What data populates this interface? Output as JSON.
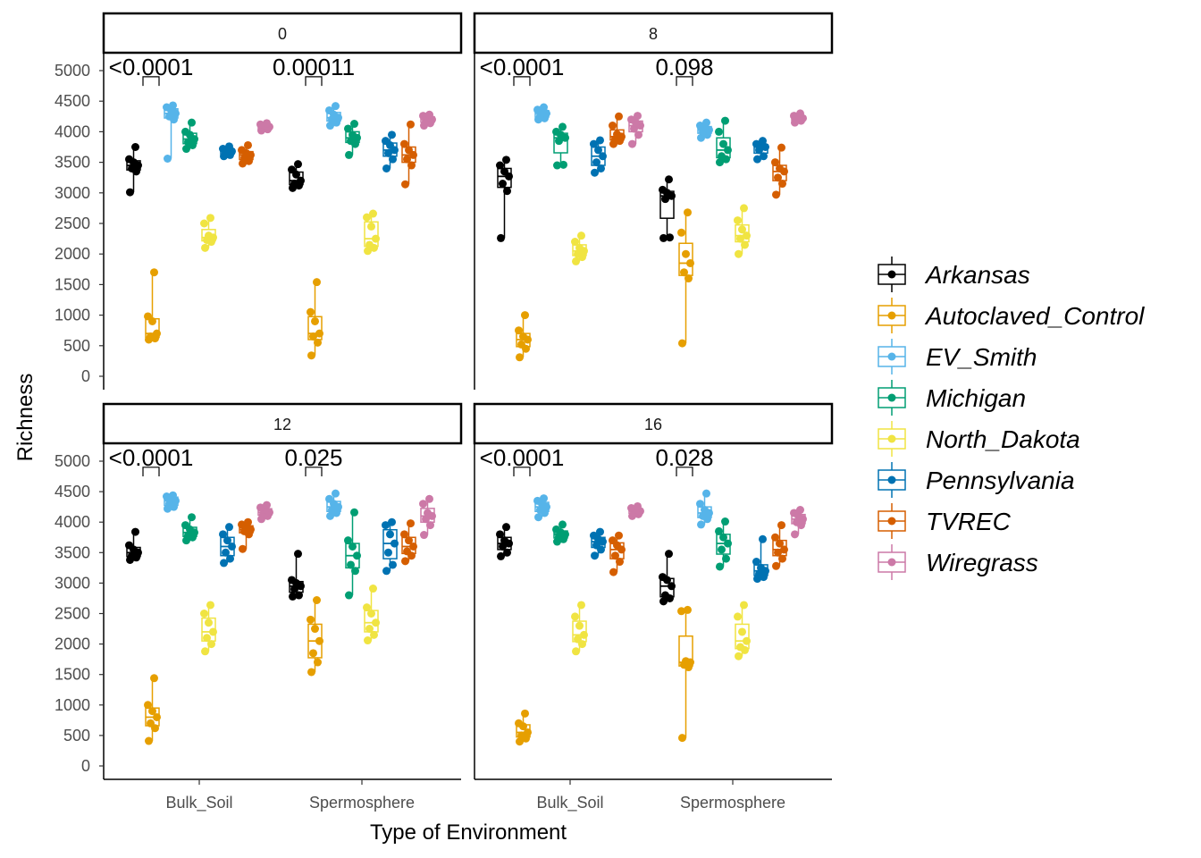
{
  "chart_data": {
    "type": "boxplot",
    "xlabel": "Type of Environment",
    "ylabel": "Richness",
    "ylim": [
      0,
      5000
    ],
    "yticks": [
      "0",
      "500",
      "1000",
      "1500",
      "2000",
      "2500",
      "3000",
      "3500",
      "4000",
      "4500",
      "5000"
    ],
    "categories": [
      "Bulk_Soil",
      "Spermosphere"
    ],
    "groups": [
      "Arkansas",
      "Autoclaved_Control",
      "EV_Smith",
      "Michigan",
      "North_Dakota",
      "Pennsylvania",
      "TVREC",
      "Wiregrass"
    ],
    "colors": {
      "Arkansas": "#000000",
      "Autoclaved_Control": "#E69F00",
      "EV_Smith": "#56B4E9",
      "Michigan": "#009E73",
      "North_Dakota": "#F0E442",
      "Pennsylvania": "#0072B2",
      "TVREC": "#D55E00",
      "Wiregrass": "#CC79A7"
    },
    "panels": [
      {
        "label": "0",
        "pvalues": [
          "<0.0001",
          "0.00011"
        ],
        "data": {
          "Bulk_Soil": {
            "Arkansas": [
              3010,
              3350,
              3400,
              3450,
              3500,
              3550,
              3750
            ],
            "Autoclaved_Control": [
              600,
              620,
              650,
              700,
              900,
              980,
              1700
            ],
            "EV_Smith": [
              3560,
              4200,
              4250,
              4300,
              4350,
              4400,
              4430
            ],
            "Michigan": [
              3720,
              3780,
              3830,
              3880,
              3950,
              4000,
              4150
            ],
            "North_Dakota": [
              2100,
              2200,
              2230,
              2270,
              2300,
              2500,
              2590
            ],
            "Pennsylvania": [
              3600,
              3620,
              3650,
              3680,
              3700,
              3720,
              3760
            ],
            "TVREC": [
              3480,
              3520,
              3570,
              3620,
              3650,
              3700,
              3780
            ],
            "Wiregrass": [
              4020,
              4040,
              4060,
              4080,
              4100,
              4120,
              4140
            ]
          },
          "Spermosphere": {
            "Arkansas": [
              3080,
              3120,
              3150,
              3200,
              3300,
              3380,
              3470
            ],
            "Autoclaved_Control": [
              340,
              550,
              650,
              700,
              900,
              1050,
              1540
            ],
            "EV_Smith": [
              4100,
              4150,
              4200,
              4230,
              4280,
              4350,
              4420
            ],
            "Michigan": [
              3620,
              3800,
              3850,
              3900,
              3950,
              4050,
              4130
            ],
            "North_Dakota": [
              2050,
              2100,
              2150,
              2250,
              2450,
              2600,
              2660
            ],
            "Pennsylvania": [
              3400,
              3550,
              3650,
              3700,
              3780,
              3850,
              3950
            ],
            "TVREC": [
              3140,
              3450,
              3550,
              3620,
              3700,
              3800,
              4120
            ],
            "Wiregrass": [
              4100,
              4140,
              4170,
              4200,
              4230,
              4260,
              4280
            ]
          }
        }
      },
      {
        "label": "8",
        "pvalues": [
          "<0.0001",
          "0.098"
        ],
        "data": {
          "Bulk_Soil": {
            "Arkansas": [
              2260,
              3030,
              3150,
              3270,
              3350,
              3450,
              3540
            ],
            "Autoclaved_Control": [
              310,
              450,
              520,
              600,
              650,
              750,
              1000
            ],
            "EV_Smith": [
              4200,
              4220,
              4260,
              4300,
              4330,
              4360,
              4400
            ],
            "Michigan": [
              3450,
              3460,
              3850,
              3900,
              3950,
              4000,
              4080
            ],
            "North_Dakota": [
              1880,
              1950,
              2000,
              2050,
              2100,
              2200,
              2300
            ],
            "Pennsylvania": [
              3330,
              3400,
              3500,
              3600,
              3700,
              3800,
              3860
            ],
            "TVREC": [
              3800,
              3850,
              3880,
              3920,
              3960,
              4100,
              4250
            ],
            "Wiregrass": [
              3800,
              3950,
              4050,
              4100,
              4150,
              4200,
              4260
            ]
          },
          "Spermosphere": {
            "Arkansas": [
              2260,
              2270,
              2900,
              2950,
              3000,
              3050,
              3220
            ],
            "Autoclaved_Control": [
              540,
              1600,
              1700,
              1850,
              2000,
              2350,
              2680
            ],
            "EV_Smith": [
              3900,
              3950,
              4000,
              4030,
              4070,
              4100,
              4150
            ],
            "Michigan": [
              3500,
              3550,
              3600,
              3700,
              3800,
              4000,
              4180
            ],
            "North_Dakota": [
              2000,
              2150,
              2250,
              2300,
              2400,
              2550,
              2750
            ],
            "Pennsylvania": [
              3550,
              3600,
              3700,
              3750,
              3780,
              3800,
              3850
            ],
            "TVREC": [
              2970,
              3150,
              3250,
              3350,
              3400,
              3500,
              3740
            ],
            "Wiregrass": [
              4150,
              4180,
              4200,
              4220,
              4240,
              4260,
              4300
            ]
          }
        }
      },
      {
        "label": "12",
        "pvalues": [
          "<0.0001",
          "0.025"
        ],
        "data": {
          "Bulk_Soil": {
            "Arkansas": [
              3380,
              3420,
              3450,
              3500,
              3550,
              3620,
              3840
            ],
            "Autoclaved_Control": [
              410,
              620,
              700,
              800,
              900,
              1000,
              1440
            ],
            "EV_Smith": [
              4220,
              4250,
              4300,
              4350,
              4400,
              4420,
              4440
            ],
            "Michigan": [
              3700,
              3750,
              3780,
              3830,
              3880,
              3950,
              4080
            ],
            "North_Dakota": [
              1880,
              2000,
              2100,
              2200,
              2350,
              2500,
              2640
            ],
            "Pennsylvania": [
              3330,
              3400,
              3500,
              3600,
              3700,
              3800,
              3920
            ],
            "TVREC": [
              3560,
              3800,
              3850,
              3880,
              3920,
              3960,
              4000
            ],
            "Wiregrass": [
              4050,
              4100,
              4130,
              4160,
              4200,
              4240,
              4280
            ]
          },
          "Spermosphere": {
            "Arkansas": [
              2780,
              2800,
              2900,
              2950,
              3000,
              3050,
              3480
            ],
            "Autoclaved_Control": [
              1540,
              1700,
              1850,
              2050,
              2250,
              2400,
              2720
            ],
            "EV_Smith": [
              4100,
              4150,
              4200,
              4250,
              4300,
              4380,
              4470
            ],
            "Michigan": [
              2800,
              3200,
              3300,
              3450,
              3600,
              3700,
              4160
            ],
            "North_Dakota": [
              2060,
              2150,
              2250,
              2350,
              2500,
              2600,
              2910
            ],
            "Pennsylvania": [
              3200,
              3300,
              3500,
              3650,
              3800,
              3950,
              4000
            ],
            "TVREC": [
              3360,
              3450,
              3520,
              3600,
              3700,
              3800,
              3980
            ],
            "Wiregrass": [
              3790,
              3950,
              4050,
              4100,
              4150,
              4300,
              4380
            ]
          }
        }
      },
      {
        "label": "16",
        "pvalues": [
          "<0.0001",
          "0.028"
        ],
        "data": {
          "Bulk_Soil": {
            "Arkansas": [
              3440,
              3500,
              3600,
              3650,
              3700,
              3800,
              3920
            ],
            "Autoclaved_Control": [
              400,
              450,
              500,
              550,
              650,
              700,
              860
            ],
            "EV_Smith": [
              4080,
              4150,
              4200,
              4250,
              4300,
              4350,
              4390
            ],
            "Michigan": [
              3680,
              3720,
              3760,
              3800,
              3830,
              3880,
              3960
            ],
            "North_Dakota": [
              1880,
              2000,
              2080,
              2150,
              2300,
              2450,
              2640
            ],
            "Pennsylvania": [
              3450,
              3550,
              3620,
              3680,
              3720,
              3780,
              3840
            ],
            "TVREC": [
              3180,
              3350,
              3450,
              3550,
              3620,
              3700,
              3780
            ],
            "Wiregrass": [
              4100,
              4130,
              4160,
              4180,
              4200,
              4230,
              4260
            ]
          },
          "Spermosphere": {
            "Arkansas": [
              2700,
              2750,
              2800,
              2950,
              3050,
              3100,
              3480
            ],
            "Autoclaved_Control": [
              460,
              1620,
              1660,
              1700,
              1720,
              2540,
              2560
            ],
            "EV_Smith": [
              3960,
              4050,
              4100,
              4150,
              4200,
              4300,
              4470
            ],
            "Michigan": [
              3270,
              3400,
              3550,
              3650,
              3750,
              3850,
              4010
            ],
            "North_Dakota": [
              1800,
              1900,
              1950,
              2050,
              2200,
              2450,
              2640
            ],
            "Pennsylvania": [
              3070,
              3100,
              3150,
              3200,
              3250,
              3350,
              3720
            ],
            "TVREC": [
              3280,
              3400,
              3500,
              3550,
              3650,
              3750,
              3950
            ],
            "Wiregrass": [
              3800,
              3950,
              4000,
              4050,
              4100,
              4150,
              4200
            ]
          }
        }
      }
    ]
  }
}
